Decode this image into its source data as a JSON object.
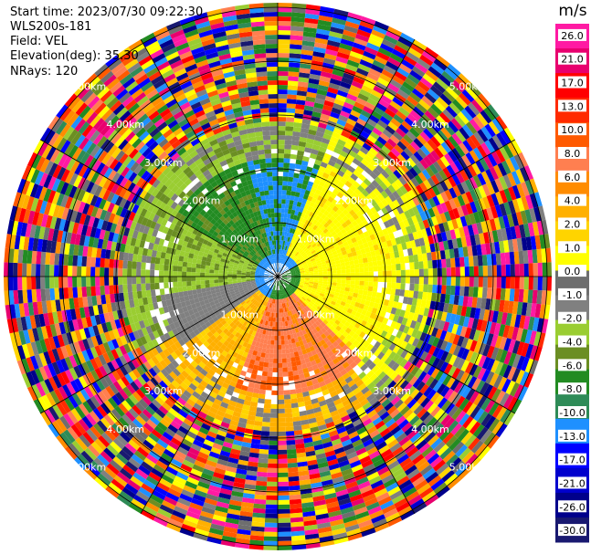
{
  "info": {
    "start_time": "Start time: 2023/07/30 09:22:30",
    "instrument": "WLS200s-181",
    "field": "Field: VEL",
    "elevation": "Elevation(deg): 35.30",
    "nrays": "NRays: 120"
  },
  "colorbar": {
    "unit": "m/s",
    "ticks": [
      "26.0",
      "21.0",
      "17.0",
      "13.0",
      "10.0",
      "8.0",
      "6.0",
      "4.0",
      "2.0",
      "1.0",
      "0.0",
      "-1.0",
      "-2.0",
      "-4.0",
      "-6.0",
      "-8.0",
      "-10.0",
      "-13.0",
      "-17.0",
      "-21.0",
      "-26.0",
      "-30.0"
    ],
    "bins": [
      "#ff1aa3",
      "#e8006e",
      "#ff0000",
      "#ff2a00",
      "#ff5a00",
      "#ff7f50",
      "#ff8c00",
      "#ffb000",
      "#ffd400",
      "#ffff00",
      "#6e6e6e",
      "#808080",
      "#9acd32",
      "#6b8e23",
      "#228b22",
      "#2e8b57",
      "#1e90ff",
      "#0000ff",
      "#0000cd",
      "#00008b",
      "#191970"
    ]
  },
  "chart_data": {
    "type": "heatmap",
    "projection": "polar (PPI)",
    "field": "VEL",
    "units": "m/s",
    "nrays": 120,
    "elevation_deg": 35.3,
    "range_labels": [
      "1.00km",
      "2.00km",
      "3.00km",
      "4.00km",
      "5.00km"
    ],
    "range_rings_km": [
      1,
      2,
      3,
      4,
      5
    ],
    "value_range": [
      -30.0,
      26.0
    ]
  }
}
